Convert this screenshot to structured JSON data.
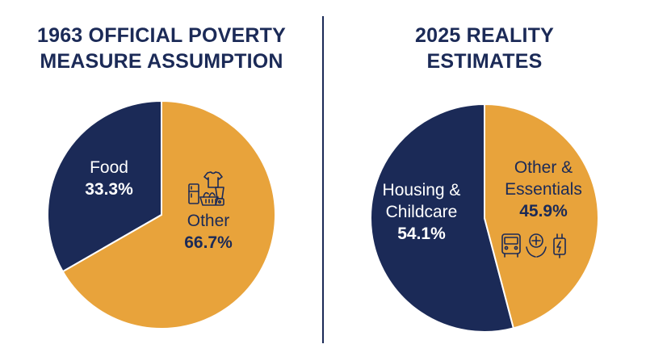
{
  "colors": {
    "navy": "#1b2a57",
    "gold": "#e8a33b",
    "white": "#ffffff"
  },
  "chart_data": [
    {
      "type": "pie",
      "title_lines": [
        "1963 OFFICIAL POVERTY",
        "MEASURE ASSUMPTION"
      ],
      "slices": [
        {
          "label_lines": [
            "Food"
          ],
          "value": 33.3,
          "value_text": "33.3%",
          "color": "#1b2a57",
          "text_color": "#ffffff"
        },
        {
          "label_lines": [
            "Other"
          ],
          "value": 66.7,
          "value_text": "66.7%",
          "color": "#e8a33b",
          "text_color": "#1b2a57",
          "icons": [
            "fridge-icon",
            "shirt-icon",
            "grocery-basket-icon",
            "blender-icon"
          ]
        }
      ]
    },
    {
      "type": "pie",
      "title_lines": [
        "2025 REALITY",
        "ESTIMATES"
      ],
      "slices": [
        {
          "label_lines": [
            "Housing &",
            "Childcare"
          ],
          "value": 54.1,
          "value_text": "54.1%",
          "color": "#1b2a57",
          "text_color": "#ffffff"
        },
        {
          "label_lines": [
            "Other &",
            "Essentials"
          ],
          "value": 45.9,
          "value_text": "45.9%",
          "color": "#e8a33b",
          "text_color": "#1b2a57",
          "icons": [
            "bus-icon",
            "healthcare-icon",
            "electricity-plug-icon"
          ]
        }
      ]
    }
  ]
}
